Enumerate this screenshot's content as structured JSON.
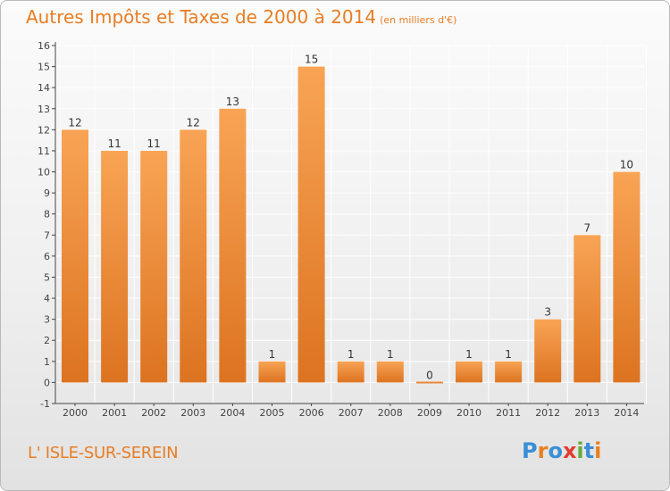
{
  "title": {
    "main": "Autres Impôts et Taxes de 2000 à 2014",
    "unit": "(en milliers d'€)"
  },
  "commune": "L' ISLE-SUR-SEREIN",
  "brand": {
    "letters": [
      "P",
      "r",
      "o",
      "x",
      "i",
      "t",
      "i"
    ],
    "colors": [
      "#3a8fd6",
      "#e8801f",
      "#3a8fd6",
      "#e23b30",
      "#5fae3d",
      "#3a8fd6",
      "#e8801f"
    ]
  },
  "colors": {
    "title": "#e87d23",
    "bar_light": "#f8a455",
    "bar_dark": "#dc7320",
    "axis": "#444444",
    "grid": "#ffffff"
  },
  "chart_data": {
    "type": "bar",
    "title": "Autres Impôts et Taxes de 2000 à 2014",
    "categories": [
      "2000",
      "2001",
      "2002",
      "2003",
      "2004",
      "2005",
      "2006",
      "2007",
      "2008",
      "2009",
      "2010",
      "2011",
      "2012",
      "2013",
      "2014"
    ],
    "values": [
      12,
      11,
      11,
      12,
      13,
      1,
      15,
      1,
      1,
      0,
      1,
      1,
      3,
      7,
      10
    ],
    "ylim": [
      -1,
      16
    ],
    "yticks": [
      -1,
      0,
      1,
      2,
      3,
      4,
      5,
      6,
      7,
      8,
      9,
      10,
      11,
      12,
      13,
      14,
      15,
      16
    ],
    "xlabel": "",
    "ylabel": "",
    "grid": true,
    "legend": "none"
  }
}
